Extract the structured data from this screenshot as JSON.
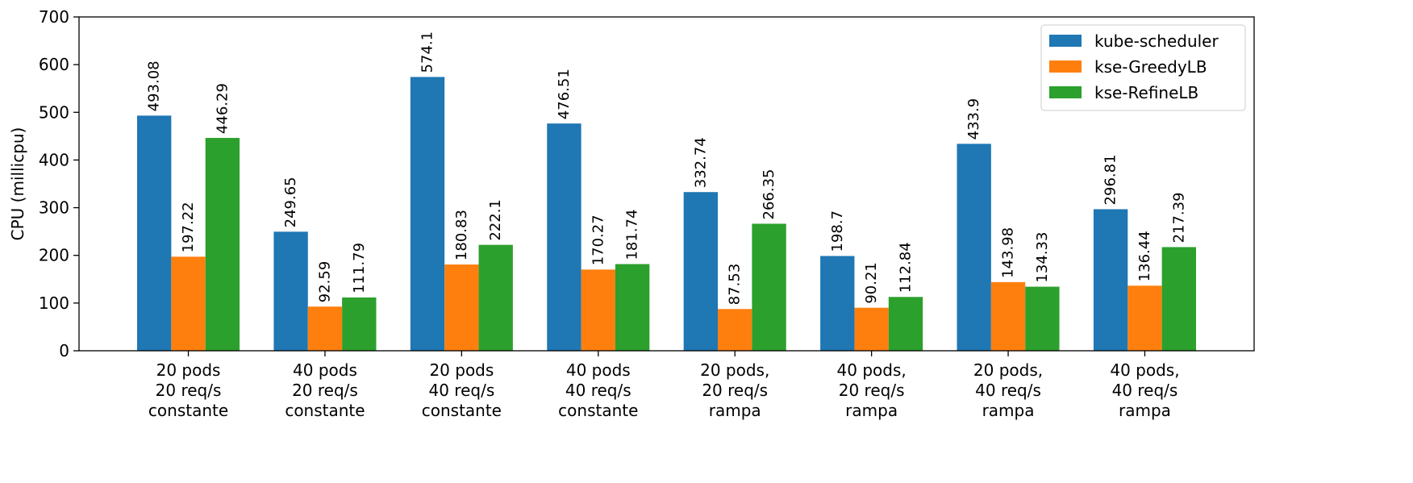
{
  "chart_data": {
    "type": "bar",
    "title": "",
    "xlabel": "",
    "ylabel": "CPU (millicpu)",
    "ylim": [
      0,
      700
    ],
    "yticks": [
      0,
      100,
      200,
      300,
      400,
      500,
      600,
      700
    ],
    "grid": false,
    "legend_position": "top-right",
    "categories": [
      [
        "20 pods",
        "20 req/s",
        "constante"
      ],
      [
        "40 pods",
        "20 req/s",
        "constante"
      ],
      [
        "20 pods",
        "40 req/s",
        "constante"
      ],
      [
        "40 pods",
        "40 req/s",
        "constante"
      ],
      [
        "20 pods,",
        "20 req/s",
        "rampa"
      ],
      [
        "40 pods,",
        "20 req/s",
        "rampa"
      ],
      [
        "20 pods,",
        "40 req/s",
        "rampa"
      ],
      [
        "40 pods,",
        "40 req/s",
        "rampa"
      ]
    ],
    "series": [
      {
        "name": "kube-scheduler",
        "color": "#1f77b4",
        "values": [
          493.08,
          249.65,
          574.1,
          476.51,
          332.74,
          198.7,
          433.9,
          296.81
        ],
        "labels": [
          "493.08",
          "249.65",
          "574.1",
          "476.51",
          "332.74",
          "198.7",
          "433.9",
          "296.81"
        ]
      },
      {
        "name": "kse-GreedyLB",
        "color": "#ff7f0e",
        "values": [
          197.22,
          92.59,
          180.83,
          170.27,
          87.53,
          90.21,
          143.98,
          136.44
        ],
        "labels": [
          "197.22",
          "92.59",
          "180.83",
          "170.27",
          "87.53",
          "90.21",
          "143.98",
          "136.44"
        ]
      },
      {
        "name": "kse-RefineLB",
        "color": "#2ca02c",
        "values": [
          446.29,
          111.79,
          222.1,
          181.74,
          266.35,
          112.84,
          134.33,
          217.39
        ],
        "labels": [
          "446.29",
          "111.79",
          "222.1",
          "181.74",
          "266.35",
          "112.84",
          "134.33",
          "217.39"
        ]
      }
    ]
  }
}
